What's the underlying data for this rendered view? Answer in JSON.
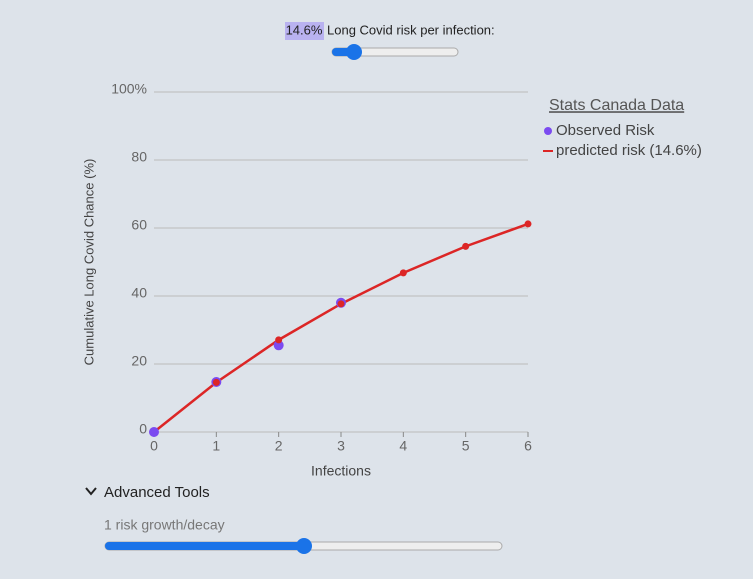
{
  "risk_slider": {
    "value_text": "14.6%",
    "label": "Long Covid risk per infection:"
  },
  "chart_data": {
    "type": "line",
    "y_label": "Cumulative Long Covid Chance (%)",
    "x_label": "Infections",
    "legend_title": "Stats Canada Data",
    "x": [
      0,
      1,
      2,
      3,
      4,
      5,
      6
    ],
    "xlim": [
      0,
      6
    ],
    "xticks": [
      0,
      1,
      2,
      3,
      4,
      5,
      6
    ],
    "ylim": [
      0,
      100
    ],
    "yticks": [
      0,
      20,
      40,
      60,
      80,
      {
        "value": 100,
        "label": "100%"
      }
    ],
    "grid": true,
    "series": [
      {
        "name": "Observed Risk",
        "color": "#7b4bf0",
        "style": "points",
        "values": [
          0,
          14.7,
          25.5,
          38,
          null,
          null,
          null
        ]
      },
      {
        "name": "predicted risk (14.6%)",
        "color": "#dc2626",
        "style": "line",
        "values": [
          0,
          14.6,
          27.1,
          37.7,
          46.8,
          54.6,
          61.2
        ]
      }
    ]
  },
  "advanced": {
    "toggle": "Advanced Tools",
    "slider_label": "1 risk growth/decay"
  }
}
